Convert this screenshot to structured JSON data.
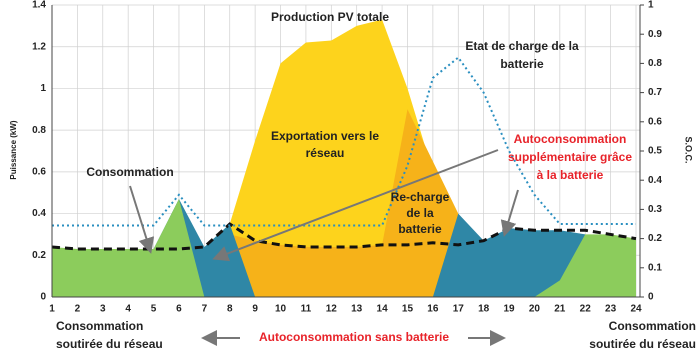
{
  "chart_data": {
    "type": "area",
    "y_label": "Puissance (kW)",
    "y2_label": "S.O.C.",
    "x": [
      1,
      2,
      3,
      4,
      5,
      6,
      7,
      8,
      9,
      10,
      11,
      12,
      13,
      14,
      15,
      16,
      17,
      18,
      19,
      20,
      21,
      22,
      23,
      24
    ],
    "xlim": [
      1,
      24
    ],
    "xticks": [
      1,
      2,
      3,
      4,
      5,
      6,
      7,
      8,
      9,
      10,
      11,
      12,
      13,
      14,
      15,
      16,
      17,
      18,
      19,
      20,
      21,
      22,
      23,
      24
    ],
    "ylim": [
      0,
      1.4
    ],
    "yticks": [
      0,
      0.2,
      0.4,
      0.6,
      0.8,
      1,
      1.2,
      1.4
    ],
    "y2lim": [
      0,
      1
    ],
    "y2ticks": [
      0,
      0.1,
      0.2,
      0.3,
      0.4,
      0.5,
      0.6,
      0.7,
      0.8,
      0.9,
      1
    ],
    "grid": true,
    "series": [
      {
        "style": "area",
        "color": "#fdd31c",
        "values": [
          0,
          0,
          0,
          0,
          0,
          0,
          0.02,
          0.35,
          0.75,
          1.12,
          1.22,
          1.23,
          1.3,
          1.33,
          1.0,
          0.6,
          0.3,
          0.1,
          0,
          0,
          0,
          0,
          0,
          0
        ]
      },
      {
        "style": "area",
        "color": "#f6b219",
        "values": [
          0,
          0,
          0,
          0,
          0,
          0,
          0.05,
          0.3,
          0.27,
          0.25,
          0.24,
          0.24,
          0.24,
          0.25,
          0.9,
          0.65,
          0.4,
          0.15,
          0,
          0,
          0,
          0,
          0,
          0
        ]
      },
      {
        "style": "area",
        "color": "#2f87a6",
        "values": [
          0,
          0,
          0,
          0,
          0.23,
          0.47,
          0.24,
          0.35,
          0,
          0,
          0,
          0,
          0,
          0,
          0,
          0,
          0.4,
          0.27,
          0.33,
          0.32,
          0.32,
          0.3,
          0,
          0
        ]
      },
      {
        "style": "area",
        "color": "#8ccc5c",
        "values": [
          0.24,
          0.23,
          0.23,
          0.23,
          0.23,
          0.47,
          0,
          0,
          0,
          0,
          0,
          0,
          0,
          0,
          0,
          0,
          0,
          0,
          0,
          0,
          0.08,
          0.3,
          0.3,
          0.28
        ]
      },
      {
        "style": "dashed",
        "color": "#111111",
        "values": [
          0.24,
          0.23,
          0.23,
          0.23,
          0.23,
          0.23,
          0.24,
          0.35,
          0.27,
          0.25,
          0.24,
          0.24,
          0.24,
          0.25,
          0.25,
          0.26,
          0.25,
          0.27,
          0.33,
          0.32,
          0.32,
          0.32,
          0.3,
          0.28
        ]
      },
      {
        "style": "dotted",
        "color": "#2a8fc0",
        "axis": "y2",
        "values": [
          0.245,
          0.245,
          0.245,
          0.245,
          0.245,
          0.35,
          0.245,
          0.245,
          0.245,
          0.245,
          0.245,
          0.245,
          0.245,
          0.245,
          0.45,
          0.75,
          0.82,
          0.7,
          0.5,
          0.35,
          0.25,
          0.25,
          0.25,
          0.25
        ]
      }
    ],
    "annotations": [
      {
        "lines": [
          "Production PV totale"
        ]
      },
      {
        "lines": [
          "Etat de charge de la",
          "batterie"
        ]
      },
      {
        "lines": [
          "Exportation vers le",
          "réseau"
        ]
      },
      {
        "lines": [
          "Consommation"
        ]
      },
      {
        "lines": [
          "Re-charge",
          "de la",
          "batterie"
        ]
      },
      {
        "lines": [
          "Autoconsommation",
          "supplémentaire grâce",
          "à la batterie"
        ]
      },
      {
        "lines": [
          "Consommation",
          "soutirée du réseau"
        ]
      },
      {
        "lines": [
          "Autoconsommation sans batterie"
        ]
      },
      {
        "lines": [
          "Consommation",
          "soutirée du réseau"
        ]
      }
    ]
  }
}
